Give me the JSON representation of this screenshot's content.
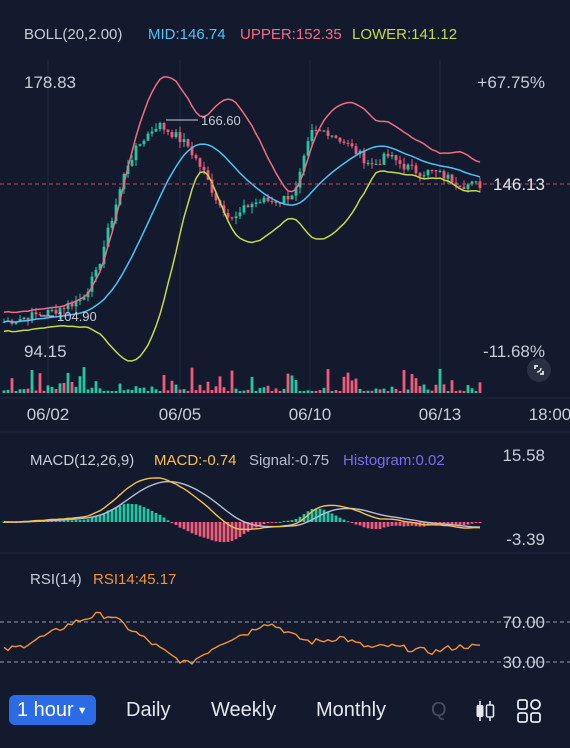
{
  "indicators": {
    "boll": {
      "name": "BOLL(20,2.00)",
      "mid": "MID:146.74",
      "upper": "UPPER:152.35",
      "lower": "LOWER:141.12"
    },
    "macd": {
      "name": "MACD(12,26,9)",
      "macd": "MACD:-0.74",
      "signal": "Signal:-0.75",
      "histogram": "Histogram:0.02"
    },
    "rsi": {
      "name": "RSI(14)",
      "value": "RSI14:45.17"
    }
  },
  "price_axis": {
    "high": "178.83",
    "low": "94.15",
    "high_pct": "+67.75%",
    "low_pct": "-11.68%",
    "last": "146.13",
    "max_marker": "166.60",
    "min_marker": "104.90"
  },
  "macd_axis": {
    "top": "15.58",
    "bottom": "-3.39"
  },
  "rsi_axis": {
    "upper": "70.00",
    "lower": "30.00"
  },
  "date_labels": [
    "06/02",
    "06/05",
    "06/10",
    "06/13",
    "18:00"
  ],
  "timeframes": {
    "active": "1 hour",
    "items": [
      "Daily",
      "Weekly",
      "Monthly",
      "Q"
    ]
  },
  "colors": {
    "background": "#131a2e",
    "up": "#26c6a2",
    "down": "#ef5b7a",
    "mid": "#4fc3f7",
    "upper": "#f26b84",
    "lower": "#c5d94a",
    "macd": "#f6c04d",
    "signal": "#b9bfd0",
    "histogram": "#7b6cf0",
    "rsi": "#f2923a",
    "active_tab": "#2b6be6"
  },
  "icons": {
    "candles": "candlestick-icon",
    "layout": "grid-layout-icon",
    "expand": "expand-icon"
  },
  "chart_data": [
    {
      "type": "candlestick",
      "title": "BOLL(20,2.00)",
      "x": [
        "06/02",
        "06/05",
        "06/10",
        "06/13",
        "18:00"
      ],
      "ylim": [
        94.15,
        178.83
      ],
      "close_path": [
        103,
        104,
        105,
        106,
        108,
        110,
        118,
        135,
        152,
        160,
        165,
        162,
        158,
        150,
        140,
        135,
        140,
        141,
        141,
        144,
        162,
        163,
        160,
        156,
        152,
        155,
        152,
        150,
        150,
        148,
        146,
        146
      ],
      "series": [
        {
          "name": "MID",
          "last": 146.74
        },
        {
          "name": "UPPER",
          "last": 152.35
        },
        {
          "name": "LOWER",
          "last": 141.12
        }
      ],
      "annotations": {
        "max": 166.6,
        "min": 104.9,
        "last_price": 146.13
      }
    },
    {
      "type": "line",
      "title": "MACD(12,26,9)",
      "ylim": [
        -3.39,
        15.58
      ],
      "series": [
        {
          "name": "MACD",
          "last": -0.74
        },
        {
          "name": "Signal",
          "last": -0.75
        },
        {
          "name": "Histogram",
          "last": 0.02
        }
      ]
    },
    {
      "type": "line",
      "title": "RSI(14)",
      "levels": [
        70.0,
        30.0
      ],
      "series": [
        {
          "name": "RSI14",
          "last": 45.17,
          "path": [
            42,
            45,
            52,
            58,
            66,
            72,
            77,
            76,
            65,
            55,
            45,
            35,
            28,
            38,
            48,
            55,
            60,
            70,
            64,
            55,
            50,
            52,
            55,
            48,
            44,
            46,
            44,
            42,
            40,
            44,
            46,
            45
          ]
        }
      ]
    }
  ]
}
